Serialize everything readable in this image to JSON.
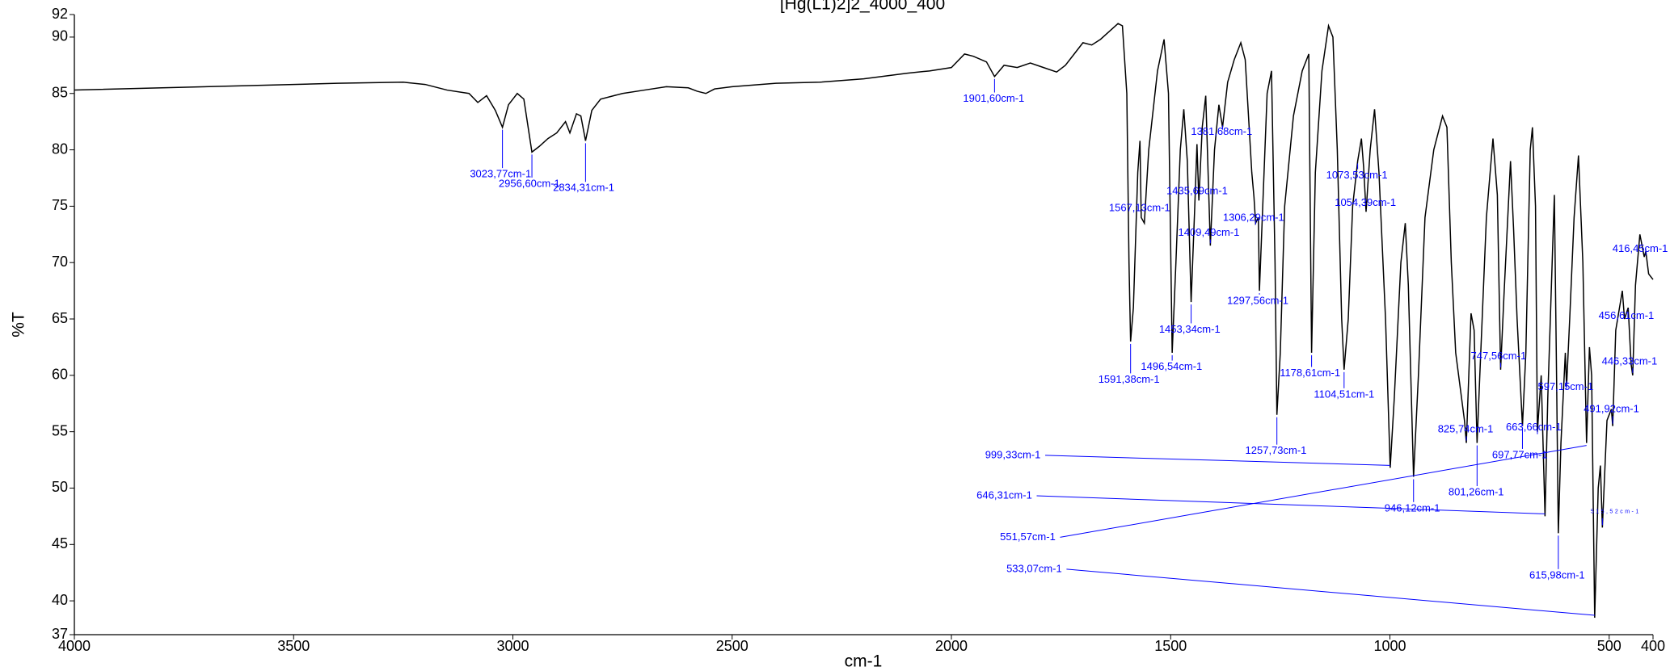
{
  "chart_data": {
    "type": "line",
    "title": "[Hg(L1)2]2_4000_400",
    "x_label": "cm-1",
    "y_label": "%T",
    "color": "#000000",
    "annotation_color": "#0000ff",
    "xlim": [
      4000,
      400
    ],
    "ylim": [
      37,
      92
    ],
    "xticks": [
      4000,
      3500,
      3000,
      2500,
      2000,
      1500,
      1000,
      500,
      400
    ],
    "yticks": [
      37,
      40,
      45,
      50,
      55,
      60,
      65,
      70,
      75,
      80,
      85,
      90,
      92
    ],
    "x": [
      4000,
      3800,
      3600,
      3400,
      3250,
      3200,
      3150,
      3100,
      3080,
      3060,
      3040,
      3023.77,
      3010,
      2990,
      2975,
      2956.6,
      2940,
      2920,
      2900,
      2880,
      2870,
      2855,
      2845,
      2834.31,
      2820,
      2800,
      2750,
      2700,
      2650,
      2600,
      2580,
      2560,
      2540,
      2500,
      2400,
      2300,
      2200,
      2100,
      2050,
      2000,
      1970,
      1950,
      1920,
      1901.6,
      1880,
      1850,
      1820,
      1790,
      1760,
      1740,
      1720,
      1700,
      1680,
      1660,
      1640,
      1620,
      1610,
      1600,
      1595,
      1591.38,
      1585,
      1575,
      1570,
      1567.13,
      1560,
      1550,
      1530,
      1515,
      1505,
      1496.54,
      1488,
      1478,
      1470,
      1462,
      1453.34,
      1445,
      1440,
      1435.69,
      1428,
      1420,
      1409.49,
      1400,
      1390,
      1381.68,
      1370,
      1355,
      1340,
      1330,
      1315,
      1310,
      1306.29,
      1300,
      1297.56,
      1290,
      1280,
      1270,
      1262,
      1257.73,
      1250,
      1240,
      1220,
      1200,
      1185,
      1178.61,
      1170,
      1155,
      1140,
      1130,
      1120,
      1110,
      1104.51,
      1095,
      1085,
      1073.53,
      1065,
      1060,
      1054.39,
      1045,
      1035,
      1025,
      1010,
      999.33,
      990,
      975,
      965,
      958,
      946.12,
      935,
      920,
      900,
      880,
      870,
      860,
      850,
      830,
      825.74,
      815,
      808,
      801.26,
      795,
      780,
      765,
      755,
      747.56,
      740,
      725,
      718,
      710,
      697.77,
      690,
      680,
      675,
      668,
      663.66,
      655,
      646.31,
      640,
      630,
      625,
      620,
      615.98,
      610,
      600,
      597.15,
      590,
      580,
      570,
      560,
      551.57,
      545,
      540,
      533.07,
      525,
      520,
      515.52,
      505,
      495,
      491.92,
      485,
      470,
      465,
      456.61,
      450,
      446.33,
      440,
      430,
      420,
      416.45,
      410,
      400
    ],
    "values": [
      85.3,
      85.5,
      85.7,
      85.9,
      86.0,
      85.8,
      85.3,
      85.0,
      84.2,
      84.8,
      83.5,
      82.0,
      84.0,
      85.0,
      84.5,
      79.8,
      80.3,
      81.0,
      81.5,
      82.5,
      81.5,
      83.2,
      83.0,
      80.8,
      83.5,
      84.5,
      85.0,
      85.3,
      85.6,
      85.5,
      85.2,
      85.0,
      85.4,
      85.6,
      85.9,
      86.0,
      86.3,
      86.8,
      87.0,
      87.3,
      88.5,
      88.3,
      87.8,
      86.5,
      87.5,
      87.3,
      87.7,
      87.3,
      86.9,
      87.5,
      88.5,
      89.5,
      89.3,
      89.8,
      90.5,
      91.2,
      91.0,
      85,
      70,
      63,
      66,
      78,
      80.8,
      74.0,
      73.5,
      80,
      87,
      89.8,
      85,
      62,
      70,
      80,
      83.6,
      79,
      66.5,
      75,
      80.5,
      75.5,
      82,
      84.8,
      71.5,
      80,
      84,
      82.0,
      86,
      88,
      89.5,
      88,
      78,
      75.8,
      73.5,
      74,
      67.5,
      75,
      85,
      87,
      70,
      56.5,
      62,
      75,
      83,
      87,
      88.5,
      62,
      78,
      87,
      91,
      90,
      80,
      65,
      60.5,
      65,
      75,
      79,
      81,
      78.5,
      74.5,
      80,
      83.6,
      78,
      65,
      51.8,
      58,
      70,
      73.5,
      68,
      51,
      60,
      74,
      80,
      83,
      82,
      70,
      62,
      56,
      54,
      65.5,
      64,
      54,
      60,
      74,
      81,
      76,
      60.5,
      67,
      79,
      73,
      65,
      55.5,
      62,
      80,
      82,
      75,
      55,
      60,
      47.5,
      58,
      70,
      76,
      60,
      46,
      54,
      62,
      59,
      65,
      74,
      79.5,
      70,
      54,
      62.5,
      60,
      38.5,
      50,
      52,
      46.5,
      56,
      57,
      55.5,
      64,
      67.5,
      65,
      66,
      61,
      60,
      68,
      72.5,
      70.5,
      71,
      69,
      68.5
    ],
    "annotations": [
      {
        "text": "3023,77cm-1",
        "x": 3023.77,
        "y": 82.0
      },
      {
        "text": "2956,60cm-1",
        "x": 2956.6,
        "y": 79.8
      },
      {
        "text": "2834,31cm-1",
        "x": 2834.31,
        "y": 80.8
      },
      {
        "text": "1901,60cm-1",
        "x": 1901.6,
        "y": 86.5
      },
      {
        "text": "1591,38cm-1",
        "x": 1591.38,
        "y": 63
      },
      {
        "text": "1567,13cm-1",
        "x": 1567.13,
        "y": 74.0
      },
      {
        "text": "1496,54cm-1",
        "x": 1496.54,
        "y": 62
      },
      {
        "text": "1453,34cm-1",
        "x": 1453.34,
        "y": 66.5
      },
      {
        "text": "1435,69cm-1",
        "x": 1435.69,
        "y": 75.5
      },
      {
        "text": "1409,49cm-1",
        "x": 1409.49,
        "y": 71.5
      },
      {
        "text": "1381,68cm-1",
        "x": 1381.68,
        "y": 82.0
      },
      {
        "text": "1306,29cm-1",
        "x": 1306.29,
        "y": 73.5
      },
      {
        "text": "1297,56cm-1",
        "x": 1297.56,
        "y": 67.5
      },
      {
        "text": "1257,73cm-1",
        "x": 1257.73,
        "y": 56.5
      },
      {
        "text": "1178,61cm-1",
        "x": 1178.61,
        "y": 62
      },
      {
        "text": "1104,51cm-1",
        "x": 1104.51,
        "y": 60.5
      },
      {
        "text": "1073,53cm-1",
        "x": 1073.53,
        "y": 79
      },
      {
        "text": "1054,39cm-1",
        "x": 1054.39,
        "y": 74.5
      },
      {
        "text": "999,33cm-1",
        "x": 999.33,
        "y": 51.8
      },
      {
        "text": "946,12cm-1",
        "x": 946.12,
        "y": 51
      },
      {
        "text": "825,74cm-1",
        "x": 825.74,
        "y": 54
      },
      {
        "text": "801,26cm-1",
        "x": 801.26,
        "y": 54
      },
      {
        "text": "747,56cm-1",
        "x": 747.56,
        "y": 60.5
      },
      {
        "text": "697,77cm-1",
        "x": 697.77,
        "y": 55.5
      },
      {
        "text": "663,66cm-1",
        "x": 663.66,
        "y": 55
      },
      {
        "text": "646,31cm-1",
        "x": 646.31,
        "y": 47.5
      },
      {
        "text": "615,98cm-1",
        "x": 615.98,
        "y": 46
      },
      {
        "text": "597,15cm-1",
        "x": 597.15,
        "y": 59
      },
      {
        "text": "551,57cm-1",
        "x": 551.57,
        "y": 54
      },
      {
        "text": "533,07cm-1",
        "x": 533.07,
        "y": 38.5
      },
      {
        "text": "515,52cm-1",
        "x": 515.52,
        "y": 46.5
      },
      {
        "text": "491,92cm-1",
        "x": 491.92,
        "y": 55.5
      },
      {
        "text": "456,61cm-1",
        "x": 456.61,
        "y": 66
      },
      {
        "text": "446,33cm-1",
        "x": 446.33,
        "y": 60
      },
      {
        "text": "416,45cm-1",
        "x": 416.45,
        "y": 71
      }
    ]
  }
}
